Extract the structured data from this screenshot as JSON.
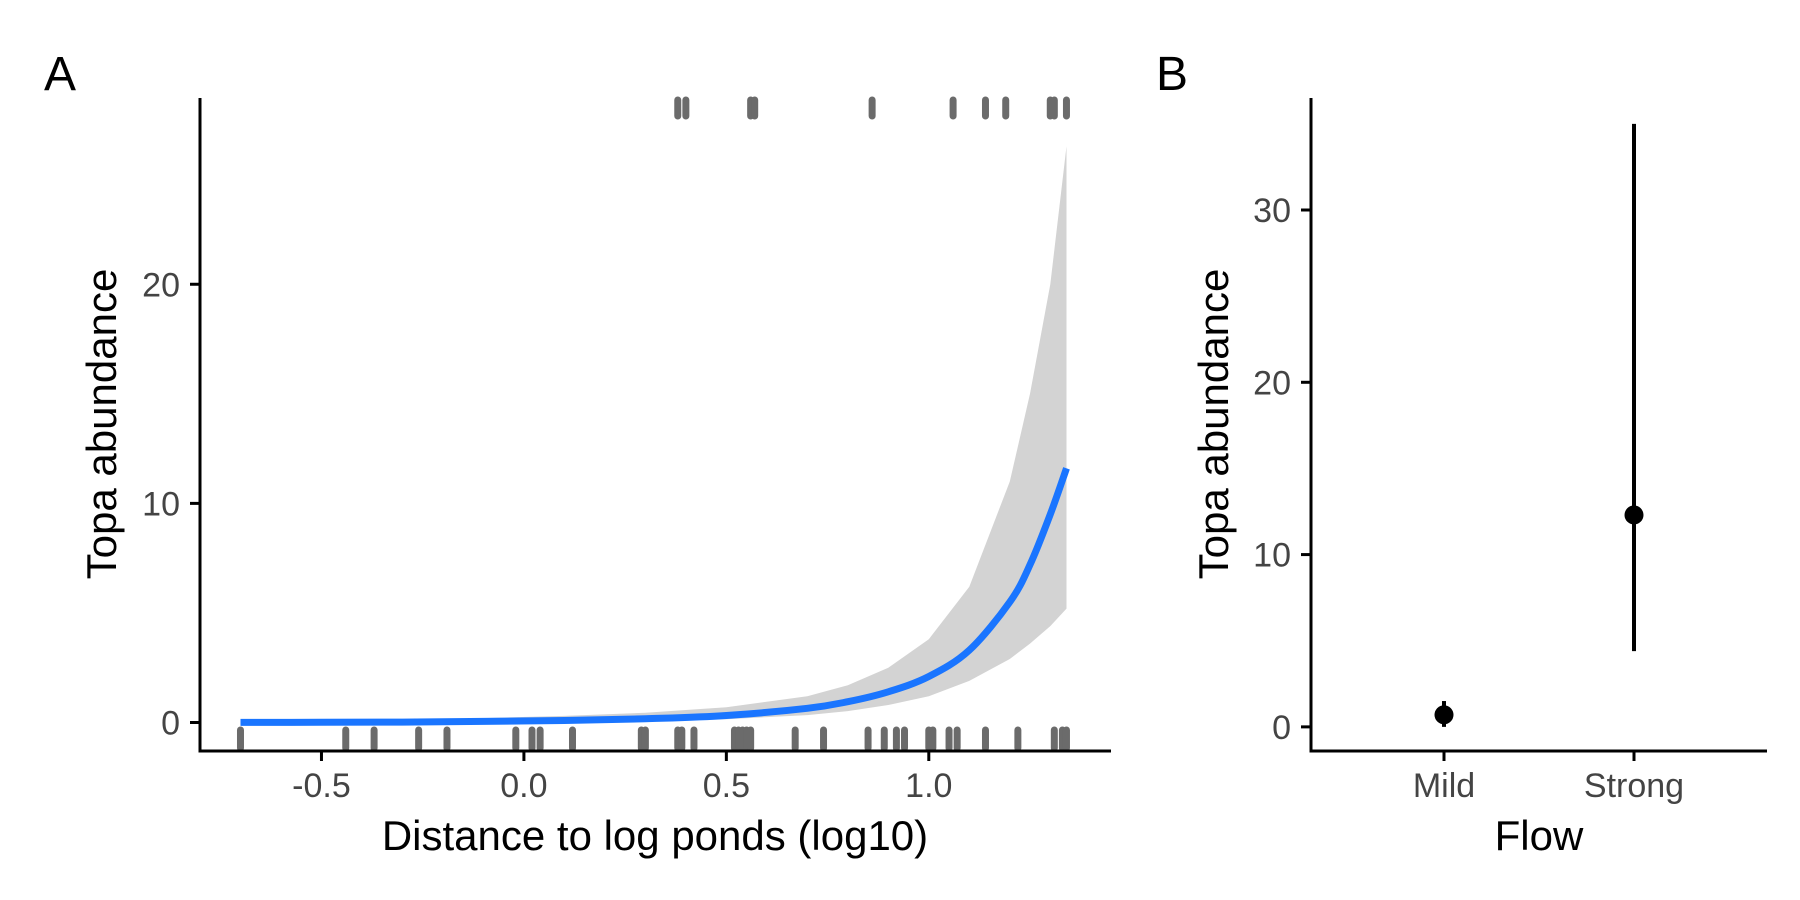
{
  "chart_data": [
    {
      "panel": "A",
      "type": "line",
      "xlabel": "Distance to log ponds (log10)",
      "ylabel": "Topa abundance",
      "xlim": [
        -0.8,
        1.45
      ],
      "ylim": [
        -1.3,
        28.5
      ],
      "xticks": [
        -0.5,
        0.0,
        0.5,
        1.0
      ],
      "xtick_labels": [
        "-0.5",
        "0.0",
        "0.5",
        "1.0"
      ],
      "yticks": [
        0,
        10,
        20
      ],
      "ytick_labels": [
        "0",
        "10",
        "20"
      ],
      "grid": false,
      "colors": {
        "fit": "#1a75ff",
        "ribbon": "#d3d3d3",
        "rug": "#6b6b6b"
      },
      "fit": {
        "x": [
          -0.7,
          -0.5,
          -0.3,
          -0.1,
          0.1,
          0.3,
          0.5,
          0.7,
          0.8,
          0.9,
          1.0,
          1.1,
          1.2,
          1.25,
          1.3,
          1.34
        ],
        "y": [
          0.005,
          0.01,
          0.02,
          0.05,
          0.09,
          0.17,
          0.32,
          0.65,
          0.95,
          1.4,
          2.1,
          3.3,
          5.5,
          7.2,
          9.5,
          11.6
        ],
        "lower": [
          0.0,
          0.0,
          0.0,
          0.01,
          0.03,
          0.07,
          0.15,
          0.34,
          0.52,
          0.8,
          1.2,
          1.9,
          2.9,
          3.6,
          4.4,
          5.2
        ],
        "upper": [
          0.05,
          0.08,
          0.12,
          0.2,
          0.3,
          0.45,
          0.7,
          1.2,
          1.7,
          2.5,
          3.8,
          6.2,
          11.0,
          15.0,
          20.0,
          26.3
        ]
      },
      "rug_top": [
        0.38,
        0.4,
        0.56,
        0.57,
        0.86,
        1.06,
        1.14,
        1.19,
        1.3,
        1.31,
        1.34
      ],
      "rug_bottom": [
        -0.7,
        -0.44,
        -0.37,
        -0.26,
        -0.19,
        -0.02,
        0.02,
        0.04,
        0.12,
        0.29,
        0.3,
        0.38,
        0.39,
        0.42,
        0.52,
        0.53,
        0.54,
        0.55,
        0.56,
        0.67,
        0.74,
        0.85,
        0.89,
        0.92,
        0.94,
        1.0,
        1.01,
        1.05,
        1.07,
        1.14,
        1.22,
        1.31,
        1.33,
        1.34
      ]
    },
    {
      "panel": "B",
      "type": "scatter",
      "xlabel": "Flow",
      "ylabel": "Topa abundance",
      "categories": [
        "Mild",
        "Strong"
      ],
      "ylim": [
        -1.4,
        36.5
      ],
      "yticks": [
        0,
        10,
        20,
        30
      ],
      "ytick_labels": [
        "0",
        "10",
        "20",
        "30"
      ],
      "grid": false,
      "points": [
        {
          "category": "Mild",
          "value": 0.7,
          "lower": 0.0,
          "upper": 1.5
        },
        {
          "category": "Strong",
          "value": 12.3,
          "lower": 4.4,
          "upper": 35.0
        }
      ]
    }
  ],
  "panel_tags": [
    "A",
    "B"
  ]
}
